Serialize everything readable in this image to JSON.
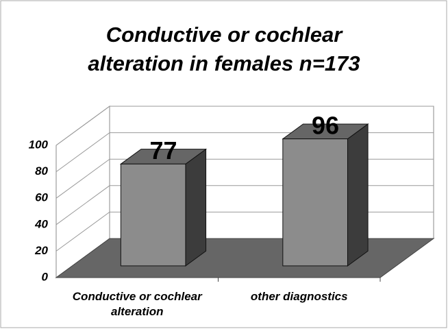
{
  "chart_data": {
    "type": "bar3d",
    "title": [
      "Conductive or cochlear",
      "alteration in females n=173"
    ],
    "categories": [
      "Conductive or cochlear alteration",
      "other diagnostics"
    ],
    "values": [
      77,
      96
    ],
    "color": "#8c8c8c",
    "ylim": [
      0,
      100
    ],
    "yticks": [
      0,
      20,
      40,
      60,
      80,
      100
    ],
    "grid": true
  }
}
